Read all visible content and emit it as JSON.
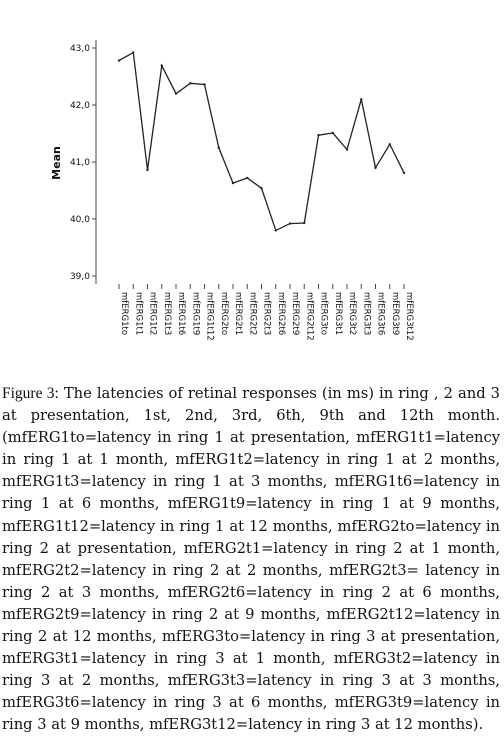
{
  "chart_data": {
    "type": "line",
    "ylabel": "Mean",
    "xlabel": "",
    "ylim": [
      39.0,
      43.0
    ],
    "yticks": [
      "43,0",
      "42,0",
      "41,0",
      "40,0",
      "39,0"
    ],
    "ytick_values": [
      43.0,
      42.0,
      41.0,
      40.0,
      39.0
    ],
    "grid": false,
    "categories": [
      "mfERG1to",
      "mfERG1t1",
      "mfERG1t2",
      "mfERG1t3",
      "mfERG1t6",
      "mfERG1t9",
      "mfERG1t12",
      "mfERG2to",
      "mfERG2t1",
      "mfERG2t2",
      "mfERG2t3",
      "mfERG2t6",
      "mfERG2t9",
      "mfERG2t12",
      "mfERG3to",
      "mfERG3t1",
      "mfERG3t2",
      "mfERG3t3",
      "mfERG3t6",
      "mfERG3t9",
      "mfERG3t12"
    ],
    "values": [
      42.78,
      42.92,
      40.86,
      42.69,
      42.2,
      42.38,
      42.36,
      41.25,
      40.63,
      40.72,
      40.54,
      39.8,
      39.92,
      39.93,
      41.47,
      41.51,
      41.22,
      42.1,
      40.9,
      41.31,
      40.81
    ],
    "line_color": "#222222"
  },
  "caption": {
    "label": "Figure 3:",
    "text": " The latencies of retinal responses (in ms) in ring , 2 and 3 at presentation, 1st, 2nd, 3rd, 6th, 9th and 12th month. (mfERG1to=latency in ring 1 at presentation, mfERG1t1=latency in ring 1 at 1 month, mfERG1t2=latency in ring 1 at 2 months, mfERG1t3=latency in ring 1 at 3 months, mfERG1t6=latency in ring 1 at 6 months, mfERG1t9=latency in ring 1 at 9 months, mfERG1t12=latency in ring 1 at 12 months, mfERG2to=latency in ring 2 at presentation, mfERG2t1=latency in ring 2 at 1 month, mfERG2t2=latency in ring 2 at 2 months, mfERG2t3= latency in ring 2 at 3 months, mfERG2t6=latency in ring 2 at 6 months, mfERG2t9=latency in ring 2 at 9 months, mfERG2t12=latency in ring 2 at 12 months, mfERG3to=latency in ring 3 at presentation, mfERG3t1=latency in ring 3 at 1 month, mfERG3t2=latency in ring 3 at 2 months, mfERG3t3=latency in ring 3 at 3 months, mfERG3t6=latency in ring 3 at 6 months, mfERG3t9=latency in ring 3 at 9 months, mfERG3t12=latency in ring 3 at 12 months)."
  }
}
